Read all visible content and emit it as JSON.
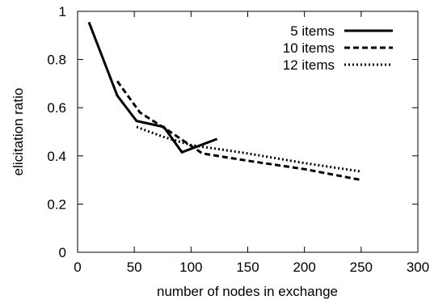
{
  "chart_data": {
    "type": "line",
    "title": "",
    "xlabel": "number of nodes in exchange",
    "ylabel": "elicitation ratio",
    "xlim": [
      0,
      300
    ],
    "ylim": [
      0,
      1
    ],
    "xticks": [
      0,
      50,
      100,
      150,
      200,
      250,
      300
    ],
    "yticks": [
      0,
      0.2,
      0.4,
      0.6,
      0.8,
      1
    ],
    "ytick_labels": [
      "0",
      "0.2",
      "0.4",
      "0.6",
      "0.8",
      "1"
    ],
    "grid": false,
    "legend_position": "top-right",
    "series": [
      {
        "name": "5 items",
        "style": "solid",
        "x": [
          10,
          35,
          52,
          76,
          92,
          123
        ],
        "y": [
          0.955,
          0.65,
          0.545,
          0.52,
          0.415,
          0.47
        ]
      },
      {
        "name": "10 items",
        "style": "dashed",
        "x": [
          35,
          55,
          80,
          110,
          150,
          200,
          250
        ],
        "y": [
          0.71,
          0.58,
          0.505,
          0.41,
          0.38,
          0.345,
          0.3
        ]
      },
      {
        "name": "12 items",
        "style": "dotted",
        "x": [
          52,
          75,
          100,
          150,
          200,
          250
        ],
        "y": [
          0.52,
          0.48,
          0.445,
          0.41,
          0.37,
          0.335
        ]
      }
    ]
  }
}
